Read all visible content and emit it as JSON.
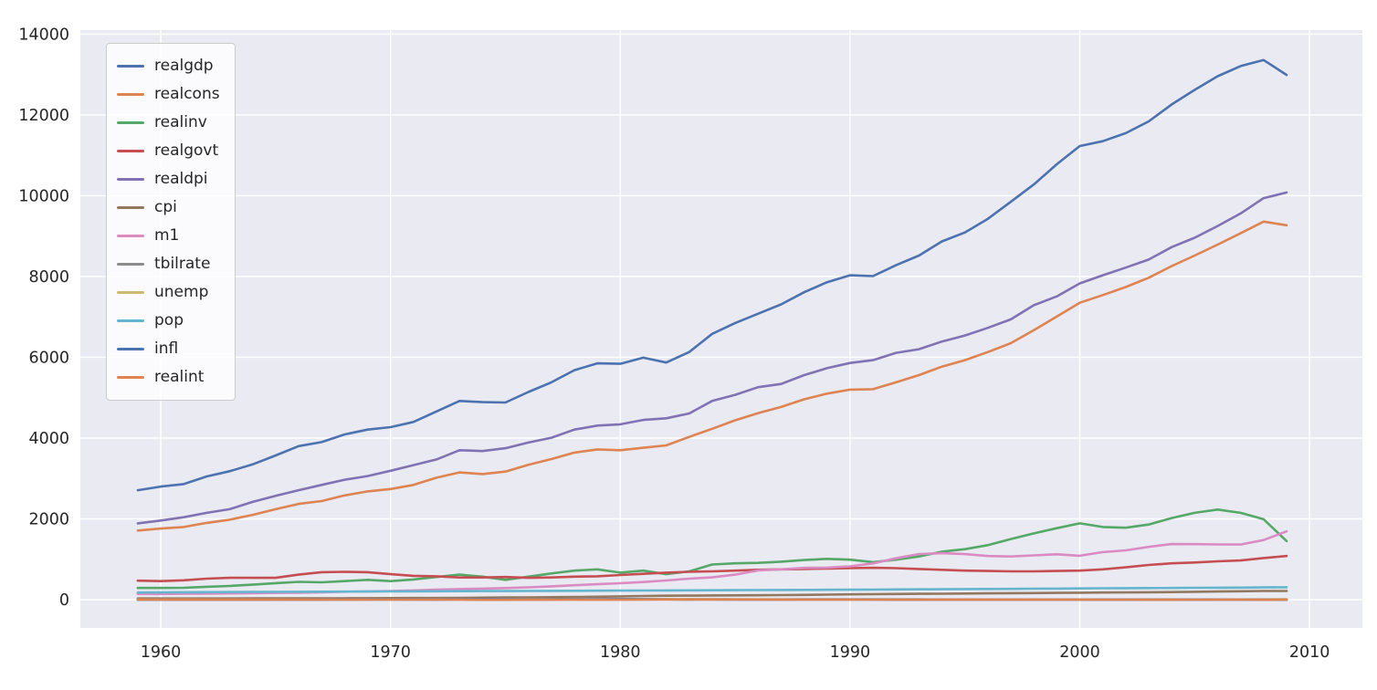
{
  "figure": {
    "background": "#ffffff",
    "plot_bg": "#eaeaf2",
    "grid_color": "#ffffff",
    "tick_color": "#262626"
  },
  "chart_data": {
    "type": "line",
    "title": "",
    "xlabel": "",
    "ylabel": "",
    "grid": true,
    "legend_position": "upper left",
    "xlim": [
      1956.5,
      2012.3
    ],
    "ylim": [
      -700,
      14100
    ],
    "x_ticks": [
      1960,
      1970,
      1980,
      1990,
      2000,
      2010
    ],
    "y_ticks": [
      0,
      2000,
      4000,
      6000,
      8000,
      10000,
      12000,
      14000
    ],
    "x": [
      1959,
      1960,
      1961,
      1962,
      1963,
      1964,
      1965,
      1966,
      1967,
      1968,
      1969,
      1970,
      1971,
      1972,
      1973,
      1974,
      1975,
      1976,
      1977,
      1978,
      1979,
      1980,
      1981,
      1982,
      1983,
      1984,
      1985,
      1986,
      1987,
      1988,
      1989,
      1990,
      1991,
      1992,
      1993,
      1994,
      1995,
      1996,
      1997,
      1998,
      1999,
      2000,
      2001,
      2002,
      2003,
      2004,
      2005,
      2006,
      2007,
      2008,
      2009
    ],
    "series": [
      {
        "name": "realgdp",
        "color": "#4c72b0",
        "values": [
          2710,
          2800,
          2860,
          3050,
          3180,
          3350,
          3570,
          3800,
          3900,
          4090,
          4210,
          4270,
          4400,
          4660,
          4920,
          4890,
          4880,
          5140,
          5380,
          5680,
          5850,
          5840,
          5990,
          5870,
          6130,
          6580,
          6850,
          7080,
          7310,
          7610,
          7860,
          8030,
          8010,
          8280,
          8520,
          8870,
          9090,
          9430,
          9850,
          10280,
          10780,
          11230,
          11350,
          11550,
          11840,
          12260,
          12620,
          12960,
          13210,
          13360,
          12990
        ]
      },
      {
        "name": "realcons",
        "color": "#dd8452",
        "values": [
          1710,
          1760,
          1800,
          1900,
          1980,
          2100,
          2240,
          2370,
          2440,
          2580,
          2680,
          2740,
          2840,
          3020,
          3150,
          3110,
          3170,
          3340,
          3480,
          3640,
          3720,
          3700,
          3760,
          3820,
          4030,
          4230,
          4440,
          4620,
          4770,
          4960,
          5100,
          5200,
          5210,
          5380,
          5560,
          5770,
          5930,
          6130,
          6350,
          6670,
          7010,
          7350,
          7540,
          7740,
          7970,
          8260,
          8520,
          8790,
          9070,
          9360,
          9270
        ]
      },
      {
        "name": "realinv",
        "color": "#55a868",
        "values": [
          290,
          290,
          295,
          320,
          340,
          370,
          410,
          440,
          430,
          460,
          490,
          460,
          500,
          560,
          620,
          570,
          490,
          570,
          650,
          720,
          750,
          670,
          720,
          630,
          700,
          870,
          900,
          910,
          940,
          980,
          1010,
          990,
          930,
          990,
          1070,
          1190,
          1250,
          1350,
          1500,
          1640,
          1770,
          1890,
          1800,
          1780,
          1860,
          2020,
          2150,
          2230,
          2150,
          1990,
          1450
        ]
      },
      {
        "name": "realgovt",
        "color": "#c44e52",
        "values": [
          470,
          460,
          480,
          520,
          540,
          540,
          540,
          620,
          680,
          690,
          680,
          630,
          590,
          580,
          550,
          550,
          560,
          540,
          550,
          570,
          580,
          610,
          640,
          670,
          690,
          700,
          720,
          740,
          750,
          760,
          770,
          780,
          790,
          780,
          760,
          740,
          720,
          710,
          700,
          700,
          710,
          720,
          750,
          800,
          860,
          900,
          920,
          950,
          970,
          1030,
          1080
        ]
      },
      {
        "name": "realdpi",
        "color": "#8172b3",
        "values": [
          1890,
          1960,
          2040,
          2150,
          2240,
          2420,
          2570,
          2710,
          2840,
          2970,
          3060,
          3190,
          3330,
          3470,
          3700,
          3680,
          3750,
          3890,
          4010,
          4210,
          4310,
          4340,
          4450,
          4490,
          4610,
          4920,
          5070,
          5260,
          5340,
          5560,
          5730,
          5860,
          5930,
          6110,
          6200,
          6390,
          6540,
          6730,
          6940,
          7290,
          7510,
          7830,
          8030,
          8220,
          8420,
          8730,
          8960,
          9250,
          9560,
          9940,
          10080
        ]
      },
      {
        "name": "cpi",
        "color": "#937860",
        "values": [
          29.0,
          29.6,
          29.9,
          30.3,
          30.6,
          31.0,
          31.5,
          32.5,
          33.4,
          34.8,
          36.7,
          38.8,
          40.5,
          41.8,
          44.4,
          49.3,
          53.8,
          56.9,
          60.6,
          65.2,
          72.6,
          82.4,
          90.9,
          96.5,
          99.6,
          103.9,
          107.6,
          109.6,
          113.6,
          118.3,
          124.0,
          130.7,
          136.2,
          140.3,
          144.5,
          148.2,
          152.4,
          156.9,
          160.5,
          163.0,
          166.6,
          172.2,
          177.1,
          179.9,
          184.0,
          188.9,
          195.3,
          201.6,
          207.3,
          215.3,
          215.9
        ]
      },
      {
        "name": "m1",
        "color": "#da8bc3",
        "values": [
          140,
          140,
          145,
          148,
          153,
          160,
          167,
          172,
          183,
          197,
          204,
          214,
          228,
          249,
          263,
          274,
          287,
          306,
          331,
          358,
          382,
          408,
          436,
          474,
          521,
          552,
          620,
          724,
          750,
          787,
          794,
          825,
          897,
          1025,
          1130,
          1150,
          1127,
          1081,
          1070,
          1096,
          1123,
          1088,
          1178,
          1220,
          1306,
          1376,
          1375,
          1367,
          1366,
          1475,
          1690
        ]
      },
      {
        "name": "tbilrate",
        "color": "#8c8c8c",
        "values": [
          3.4,
          2.9,
          2.4,
          2.8,
          3.2,
          3.6,
          4.0,
          4.9,
          4.3,
          5.3,
          6.7,
          6.4,
          4.3,
          4.1,
          7.0,
          7.8,
          5.8,
          5.0,
          5.3,
          7.2,
          10.0,
          11.5,
          14.0,
          10.7,
          8.6,
          9.6,
          7.5,
          6.0,
          5.8,
          6.7,
          8.1,
          7.5,
          5.4,
          3.4,
          3.0,
          4.3,
          5.5,
          5.0,
          5.1,
          4.8,
          4.6,
          5.8,
          3.4,
          1.6,
          1.0,
          1.4,
          3.2,
          4.7,
          4.4,
          1.5,
          0.1
        ]
      },
      {
        "name": "unemp",
        "color": "#ccb974",
        "values": [
          5.5,
          5.5,
          6.7,
          5.5,
          5.7,
          5.2,
          4.5,
          3.8,
          3.8,
          3.6,
          3.5,
          5.0,
          5.9,
          5.6,
          4.9,
          5.6,
          8.5,
          7.7,
          7.1,
          6.1,
          5.8,
          7.2,
          7.6,
          9.7,
          9.6,
          7.5,
          7.2,
          7.0,
          6.2,
          5.5,
          5.3,
          5.6,
          6.8,
          7.5,
          6.9,
          6.1,
          5.6,
          5.4,
          4.9,
          4.5,
          4.2,
          4.0,
          4.7,
          5.8,
          6.0,
          5.5,
          5.1,
          4.6,
          4.6,
          5.8,
          9.3
        ]
      },
      {
        "name": "pop",
        "color": "#64b5cd",
        "values": [
          177.1,
          179.9,
          182.7,
          185.5,
          188.2,
          190.7,
          193.1,
          195.3,
          197.3,
          199.3,
          201.3,
          203.8,
          206.2,
          208.2,
          210.0,
          211.9,
          213.8,
          215.9,
          218.1,
          220.2,
          222.6,
          225.1,
          227.3,
          229.3,
          231.2,
          233.2,
          235.2,
          237.4,
          239.6,
          241.9,
          244.1,
          246.6,
          249.5,
          252.6,
          255.8,
          259.0,
          262.2,
          265.2,
          268.2,
          271.2,
          274.3,
          279.2,
          282.4,
          285.3,
          288.1,
          290.8,
          293.6,
          296.5,
          299.4,
          302.3,
          307.0
        ]
      },
      {
        "name": "infl",
        "color": "#4c72b0",
        "values": [
          0.0,
          1.5,
          0.8,
          1.2,
          1.3,
          1.3,
          1.9,
          3.0,
          2.8,
          4.3,
          5.5,
          5.8,
          4.3,
          3.3,
          6.2,
          11.0,
          9.1,
          5.8,
          6.5,
          7.6,
          11.3,
          13.5,
          10.3,
          6.2,
          3.2,
          4.3,
          3.6,
          1.9,
          3.6,
          4.1,
          4.8,
          5.4,
          4.2,
          3.0,
          3.0,
          2.6,
          2.8,
          3.0,
          2.3,
          1.6,
          2.2,
          3.4,
          2.8,
          1.6,
          2.3,
          2.7,
          3.4,
          3.2,
          2.8,
          3.8,
          -1.0
        ]
      },
      {
        "name": "realint",
        "color": "#dd8452",
        "values": [
          3.4,
          1.4,
          1.6,
          1.6,
          1.9,
          2.3,
          2.1,
          1.9,
          1.5,
          1.0,
          1.2,
          0.6,
          0.0,
          0.8,
          0.8,
          -3.2,
          -3.3,
          -0.8,
          -1.2,
          -0.4,
          -1.3,
          -2.0,
          3.7,
          4.5,
          5.4,
          5.3,
          3.9,
          4.1,
          2.2,
          2.6,
          3.3,
          2.1,
          1.2,
          0.4,
          0.0,
          1.7,
          2.7,
          2.0,
          2.8,
          3.2,
          2.4,
          2.4,
          0.6,
          0.0,
          -1.3,
          -1.3,
          -0.2,
          1.5,
          1.6,
          -2.3,
          1.1
        ]
      }
    ]
  }
}
